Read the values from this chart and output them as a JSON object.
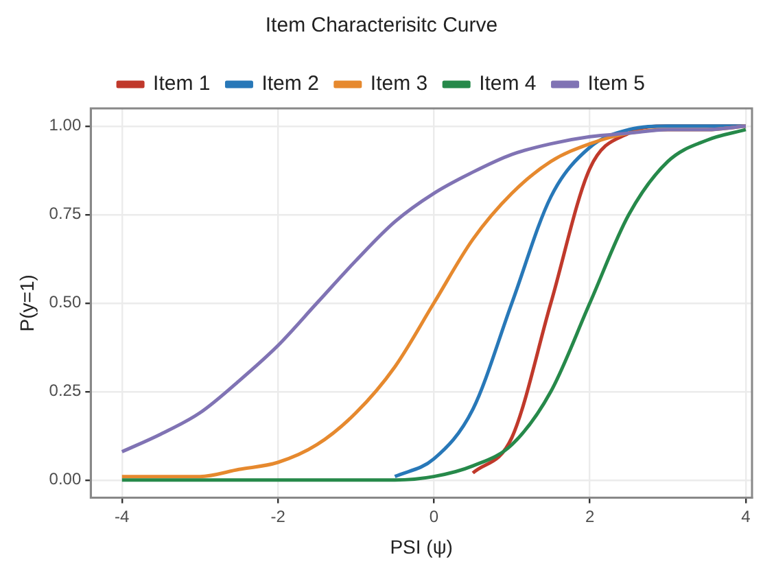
{
  "chart_data": {
    "type": "line",
    "title": "Item Characterisitc Curve",
    "xlabel": "PSI (ψ)",
    "ylabel": "P(y=1)",
    "x": [
      -4,
      -3.5,
      -3,
      -2.5,
      -2,
      -1.5,
      -1,
      -0.5,
      0,
      0.5,
      1,
      1.5,
      2,
      2.5,
      3,
      3.5,
      4
    ],
    "series": [
      {
        "name": "Item 1",
        "color": "#c0392b",
        "values": [
          null,
          null,
          null,
          null,
          null,
          null,
          null,
          null,
          null,
          0.02,
          0.12,
          0.5,
          0.88,
          0.98,
          1,
          1,
          1
        ]
      },
      {
        "name": "Item 2",
        "color": "#2878b8",
        "values": [
          null,
          null,
          null,
          null,
          null,
          null,
          null,
          0.01,
          0.06,
          0.2,
          0.5,
          0.8,
          0.94,
          0.99,
          1,
          1,
          1
        ]
      },
      {
        "name": "Item 3",
        "color": "#e6892e",
        "values": [
          0.01,
          0.01,
          0.01,
          0.03,
          0.05,
          0.1,
          0.19,
          0.32,
          0.5,
          0.68,
          0.81,
          0.9,
          0.95,
          0.98,
          0.99,
          0.99,
          1
        ]
      },
      {
        "name": "Item 4",
        "color": "#26894a",
        "values": [
          0,
          0,
          0,
          0,
          0,
          0,
          0,
          0,
          0.01,
          0.04,
          0.1,
          0.25,
          0.5,
          0.75,
          0.9,
          0.96,
          0.99
        ]
      },
      {
        "name": "Item 5",
        "color": "#8073b4",
        "values": [
          0.08,
          0.13,
          0.19,
          0.28,
          0.38,
          0.5,
          0.62,
          0.73,
          0.81,
          0.87,
          0.92,
          0.95,
          0.97,
          0.98,
          0.99,
          0.99,
          1
        ]
      }
    ],
    "xlim": [
      -4.4,
      4.08
    ],
    "ylim": [
      -0.05,
      1.05
    ],
    "xticks": [
      -4,
      -2,
      0,
      2,
      4
    ],
    "yticks": [
      {
        "value": 0,
        "label": "0.00"
      },
      {
        "value": 0.25,
        "label": "0.25"
      },
      {
        "value": 0.5,
        "label": "0.50"
      },
      {
        "value": 0.75,
        "label": "0.75"
      },
      {
        "value": 1,
        "label": "1.00"
      }
    ],
    "grid": true,
    "legend": "top",
    "marker": "none",
    "line_style": "solid"
  }
}
